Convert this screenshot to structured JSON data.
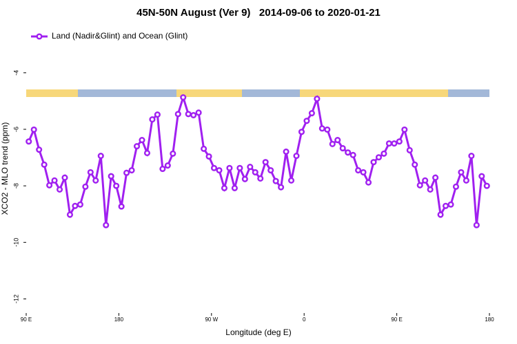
{
  "chart_data": {
    "type": "line",
    "title": "45N-50N August (Ver 9)   2014-09-06 to 2020-01-21",
    "x_label": "Longitude (deg E)",
    "y_label": "XCO2 - MLO trend (ppm)",
    "xlim": [
      90,
      540
    ],
    "ylim": [
      -12.5,
      -2.35
    ],
    "xticks": [
      {
        "value": 90,
        "label": "90 E"
      },
      {
        "value": 180,
        "label": "180"
      },
      {
        "value": 270,
        "label": "90 W"
      },
      {
        "value": 360,
        "label": "0"
      },
      {
        "value": 450,
        "label": "90 E"
      },
      {
        "value": 540,
        "label": "180"
      }
    ],
    "yticks": [
      -4,
      -6,
      -8,
      -10,
      -12
    ],
    "legend": "top-left",
    "x": [
      92.5,
      97.5,
      102.5,
      107.5,
      112.5,
      117.5,
      122.5,
      127.5,
      132.5,
      137.5,
      142.5,
      147.5,
      152.5,
      157.5,
      162.5,
      167.5,
      172.5,
      177.5,
      182.5,
      187.5,
      192.5,
      197.5,
      202.5,
      207.5,
      212.5,
      217.5,
      222.5,
      227.5,
      232.5,
      237.5,
      242.5,
      247.5,
      252.5,
      257.5,
      262.5,
      267.5,
      272.5,
      277.5,
      282.5,
      287.5,
      292.5,
      297.5,
      302.5,
      307.5,
      312.5,
      317.5,
      322.5,
      327.5,
      332.5,
      337.5,
      342.5,
      347.5,
      352.5,
      357.5,
      362.5,
      367.5,
      372.5,
      377.5,
      382.5,
      387.5,
      392.5,
      397.5,
      402.5,
      407.5,
      412.5,
      417.5,
      422.5,
      427.5,
      432.5,
      437.5,
      442.5,
      447.5,
      452.5,
      457.5,
      462.5,
      467.5,
      472.5,
      477.5,
      482.5,
      487.5,
      492.5,
      497.5,
      502.5,
      507.5,
      512.5,
      517.5,
      522.5,
      527.5,
      532.5,
      537.5
    ],
    "series": [
      {
        "name": "Land (Nadir&Glint) and Ocean (Glint)",
        "color": "#a020f0",
        "values": [
          -6.43,
          -6.01,
          -6.72,
          -7.25,
          -7.98,
          -7.81,
          -8.13,
          -7.71,
          -9.02,
          -8.71,
          -8.66,
          -8.03,
          -7.52,
          -7.81,
          -6.94,
          -9.39,
          -7.66,
          -8.0,
          -8.73,
          -7.54,
          -7.45,
          -6.6,
          -6.38,
          -6.84,
          -5.65,
          -5.48,
          -7.4,
          -7.28,
          -6.86,
          -5.46,
          -4.87,
          -5.46,
          -5.5,
          -5.41,
          -6.69,
          -6.96,
          -7.37,
          -7.45,
          -8.08,
          -7.37,
          -8.08,
          -7.37,
          -7.76,
          -7.33,
          -7.52,
          -7.74,
          -7.16,
          -7.45,
          -7.83,
          -8.05,
          -6.79,
          -7.81,
          -6.94,
          -6.09,
          -5.7,
          -5.43,
          -4.92,
          -5.97,
          -6.01,
          -6.52,
          -6.38,
          -6.67,
          -6.82,
          -6.91,
          -7.45,
          -7.52,
          -7.88,
          -7.16,
          -6.99,
          -6.86,
          -6.5,
          -6.5,
          -6.43,
          -6.01,
          -6.74,
          -7.25,
          -7.98,
          -7.81,
          -8.13,
          -7.71,
          -9.02,
          -8.71,
          -8.66,
          -8.03,
          -7.52,
          -7.81,
          -6.94,
          -9.39,
          -7.66,
          -8.0
        ]
      }
    ]
  }
}
